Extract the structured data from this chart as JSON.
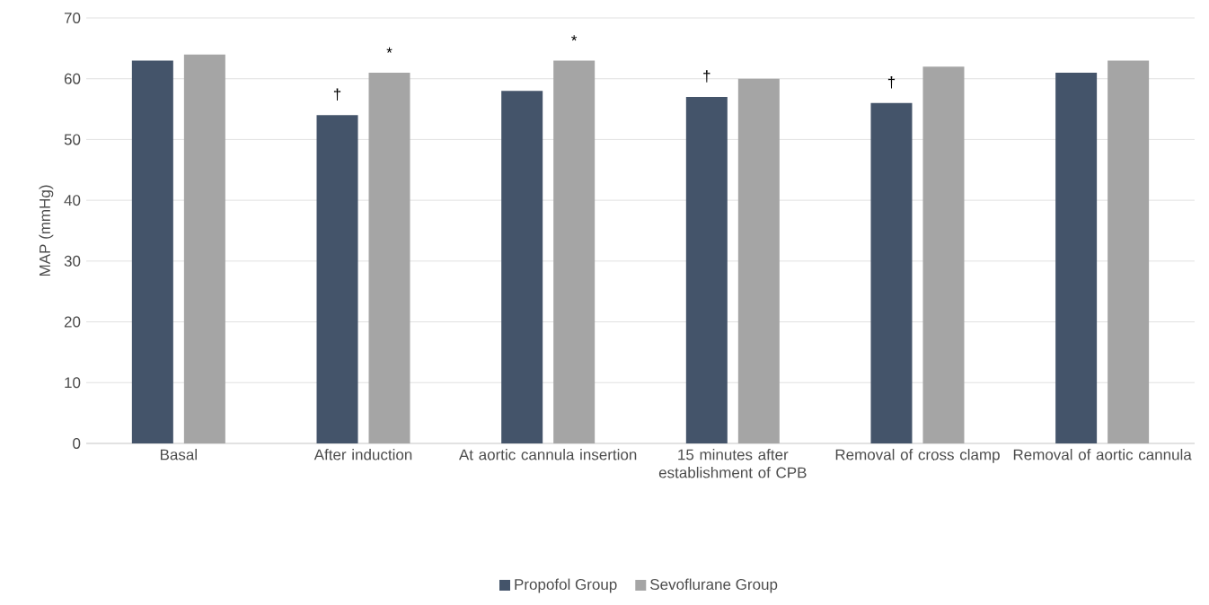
{
  "chart_data": {
    "type": "bar",
    "ylabel": "MAP (mmHg)",
    "categories": [
      "Basal",
      "After induction",
      "At aortic cannula insertion",
      "15 minutes after establishment of CPB",
      "Removal of cross clamp",
      "Removal of aortic cannula"
    ],
    "series": [
      {
        "name": "Propofol  Group",
        "color": "#44546a",
        "values": [
          63,
          54,
          58,
          57,
          56,
          61
        ]
      },
      {
        "name": "Sevoflurane Group",
        "color": "#a5a5a5",
        "values": [
          64,
          61,
          63,
          60,
          62,
          63
        ]
      }
    ],
    "ylim": [
      0,
      70
    ],
    "yticks": [
      0,
      10,
      20,
      30,
      40,
      50,
      60,
      70
    ],
    "grid": "y",
    "legend": "bottom",
    "annotations": [
      {
        "text": "†",
        "x": "After induction",
        "y": 54
      },
      {
        "text": "*",
        "x": "After induction",
        "y": 61
      },
      {
        "text": "*",
        "x": "At aortic cannula insertion",
        "y": 63
      },
      {
        "text": "†",
        "x": "15 minutes after establishment of CPB",
        "y": 57
      },
      {
        "text": "†",
        "x": "Removal of cross clamp",
        "y": 56
      }
    ]
  }
}
